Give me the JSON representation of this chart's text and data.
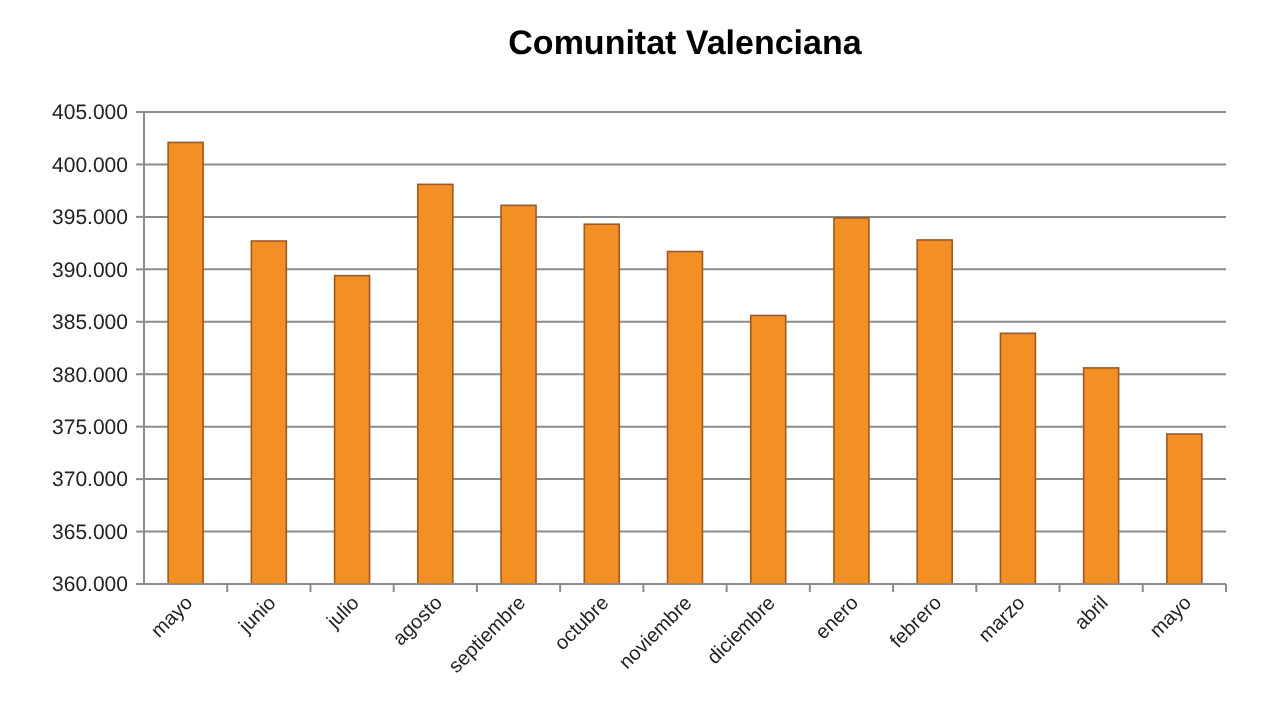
{
  "chart_data": {
    "type": "bar",
    "title": "Comunitat Valenciana",
    "categories": [
      "mayo",
      "junio",
      "julio",
      "agosto",
      "septiembre",
      "octubre",
      "noviembre",
      "diciembre",
      "enero",
      "febrero",
      "marzo",
      "abril",
      "mayo"
    ],
    "values": [
      402100,
      392700,
      389400,
      398100,
      396100,
      394300,
      391700,
      385600,
      394900,
      392800,
      383900,
      380600,
      374300
    ],
    "color": "#f39025",
    "ylim": [
      360000,
      405000
    ],
    "yticks": [
      {
        "value": 360000,
        "label": "360.000"
      },
      {
        "value": 365000,
        "label": "365.000"
      },
      {
        "value": 370000,
        "label": "370.000"
      },
      {
        "value": 375000,
        "label": "375.000"
      },
      {
        "value": 380000,
        "label": "380.000"
      },
      {
        "value": 385000,
        "label": "385.000"
      },
      {
        "value": 390000,
        "label": "390.000"
      },
      {
        "value": 395000,
        "label": "395.000"
      },
      {
        "value": 400000,
        "label": "400.000"
      },
      {
        "value": 405000,
        "label": "405.000"
      }
    ],
    "grid": "y"
  }
}
